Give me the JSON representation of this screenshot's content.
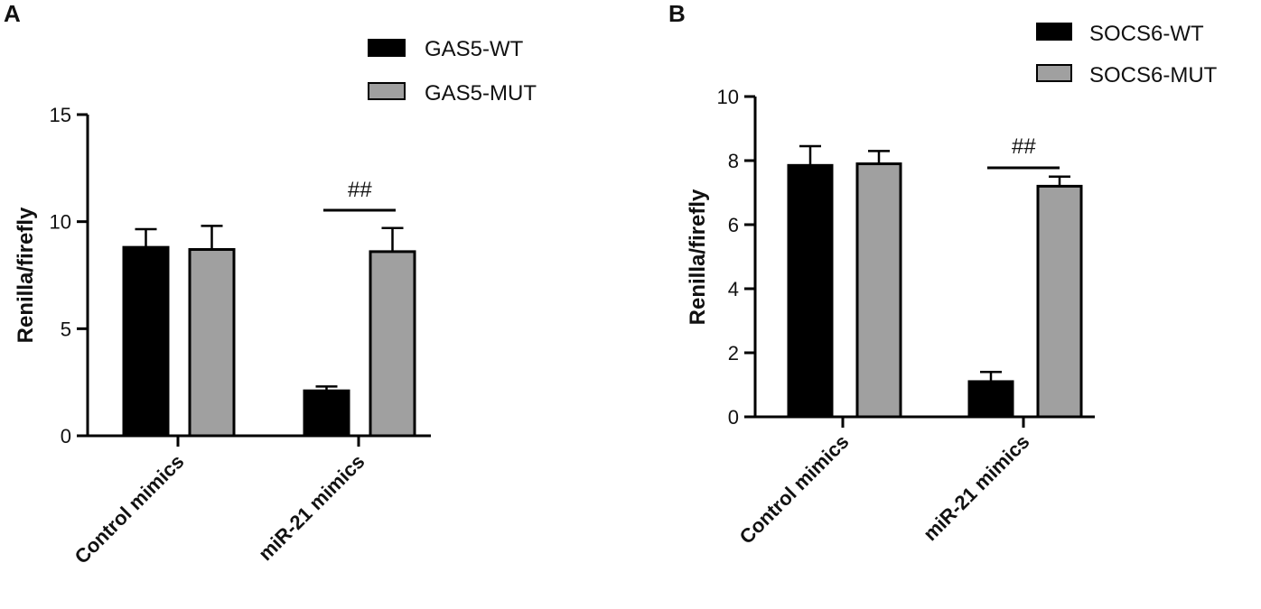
{
  "chart_data": [
    {
      "panel": "A",
      "type": "bar",
      "categories": [
        "Control mimics",
        "miR-21 mimics"
      ],
      "series": [
        {
          "name": "GAS5-WT",
          "color": "#000000",
          "values": [
            8.8,
            2.1
          ],
          "errors": [
            0.85,
            0.2
          ]
        },
        {
          "name": "GAS5-MUT",
          "color": "#a0a0a0",
          "values": [
            8.7,
            8.6
          ],
          "errors": [
            1.1,
            1.1
          ]
        }
      ],
      "xlabel": "",
      "ylabel": "Renilla/firefly",
      "ylim": [
        0,
        15
      ],
      "yticks": [
        0,
        5,
        10,
        15
      ],
      "grid": false,
      "legend": "top-right",
      "annotations": [
        {
          "text": "##",
          "category": "miR-21 mimics"
        }
      ]
    },
    {
      "panel": "B",
      "type": "bar",
      "categories": [
        "Control mimics",
        "miR-21 mimics"
      ],
      "series": [
        {
          "name": "SOCS6-WT",
          "color": "#000000",
          "values": [
            7.85,
            1.1
          ],
          "errors": [
            0.6,
            0.3
          ]
        },
        {
          "name": "SOCS6-MUT",
          "color": "#a0a0a0",
          "values": [
            7.9,
            7.2
          ],
          "errors": [
            0.4,
            0.3
          ]
        }
      ],
      "xlabel": "",
      "ylabel": "Renilla/firefly",
      "ylim": [
        0,
        10
      ],
      "yticks": [
        0,
        2,
        4,
        6,
        8,
        10
      ],
      "grid": false,
      "legend": "top-right",
      "annotations": [
        {
          "text": "##",
          "category": "miR-21 mimics"
        }
      ]
    }
  ]
}
